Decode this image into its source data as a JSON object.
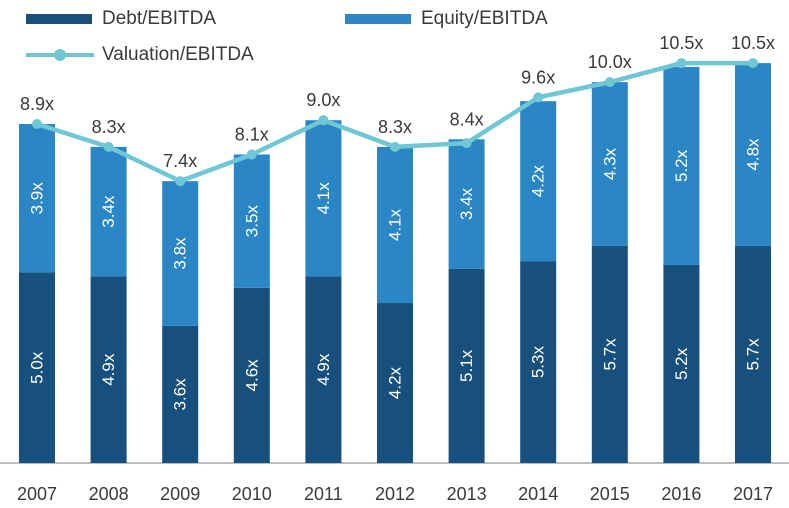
{
  "chart_data": {
    "type": "bar",
    "stacked": true,
    "categories": [
      "2007",
      "2008",
      "2009",
      "2010",
      "2011",
      "2012",
      "2013",
      "2014",
      "2015",
      "2016",
      "2017"
    ],
    "series": [
      {
        "name": "Debt/EBITDA",
        "color": "#17507d",
        "values": [
          5.0,
          4.9,
          3.6,
          4.6,
          4.9,
          4.2,
          5.1,
          5.3,
          5.7,
          5.2,
          5.7
        ],
        "labels": [
          "5.0x",
          "4.9x",
          "3.6x",
          "4.6x",
          "4.9x",
          "4.2x",
          "5.1x",
          "5.3x",
          "5.7x",
          "5.2x",
          "5.7x"
        ]
      },
      {
        "name": "Equity/EBITDA",
        "color": "#2b86c5",
        "values": [
          3.9,
          3.4,
          3.8,
          3.5,
          4.1,
          4.1,
          3.4,
          4.2,
          4.3,
          5.2,
          4.8
        ],
        "labels": [
          "3.9x",
          "3.4x",
          "3.8x",
          "3.5x",
          "4.1x",
          "4.1x",
          "3.4x",
          "4.2x",
          "4.3x",
          "5.2x",
          "4.8x"
        ]
      }
    ],
    "line_series": {
      "name": "Valuation/EBITDA",
      "color": "#6fc7d6",
      "values": [
        8.9,
        8.3,
        7.4,
        8.1,
        9.0,
        8.3,
        8.4,
        9.6,
        10.0,
        10.5,
        10.5
      ],
      "labels": [
        "8.9x",
        "8.3x",
        "7.4x",
        "8.1x",
        "9.0x",
        "8.3x",
        "8.4x",
        "9.6x",
        "10.0x",
        "10.5x",
        "10.5x"
      ]
    },
    "ylim": [
      0,
      11.5
    ],
    "grid": false,
    "legend_placement": "top",
    "title": "",
    "xlabel": "",
    "ylabel": ""
  }
}
